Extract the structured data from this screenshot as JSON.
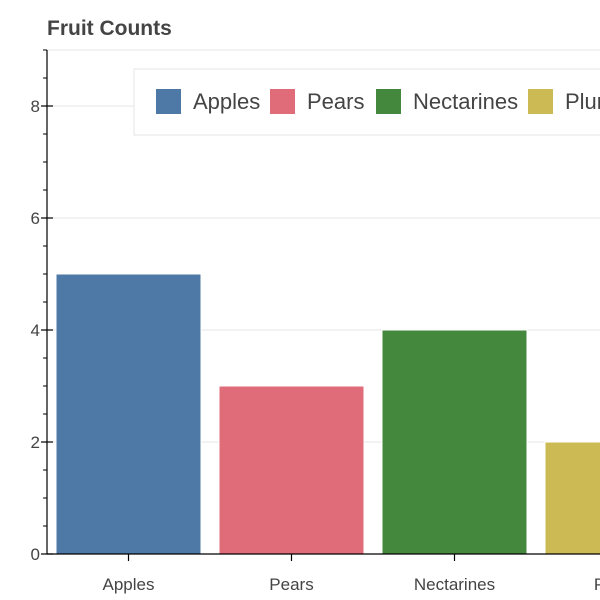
{
  "chart_data": {
    "type": "bar",
    "title": "Fruit Counts",
    "categories": [
      "Apples",
      "Pears",
      "Nectarines",
      "Plums"
    ],
    "values": [
      5,
      3,
      4,
      2
    ],
    "colors": [
      "#4e79a7",
      "#e06c7a",
      "#44883e",
      "#ccbb55"
    ],
    "legend": [
      "Apples",
      "Pears",
      "Nectarines",
      "Plums"
    ],
    "legend_position": "top",
    "xlabel": "",
    "ylabel": "",
    "ylim": [
      0,
      9
    ],
    "yticks": [
      0,
      2,
      4,
      6,
      8
    ],
    "grid": true
  }
}
